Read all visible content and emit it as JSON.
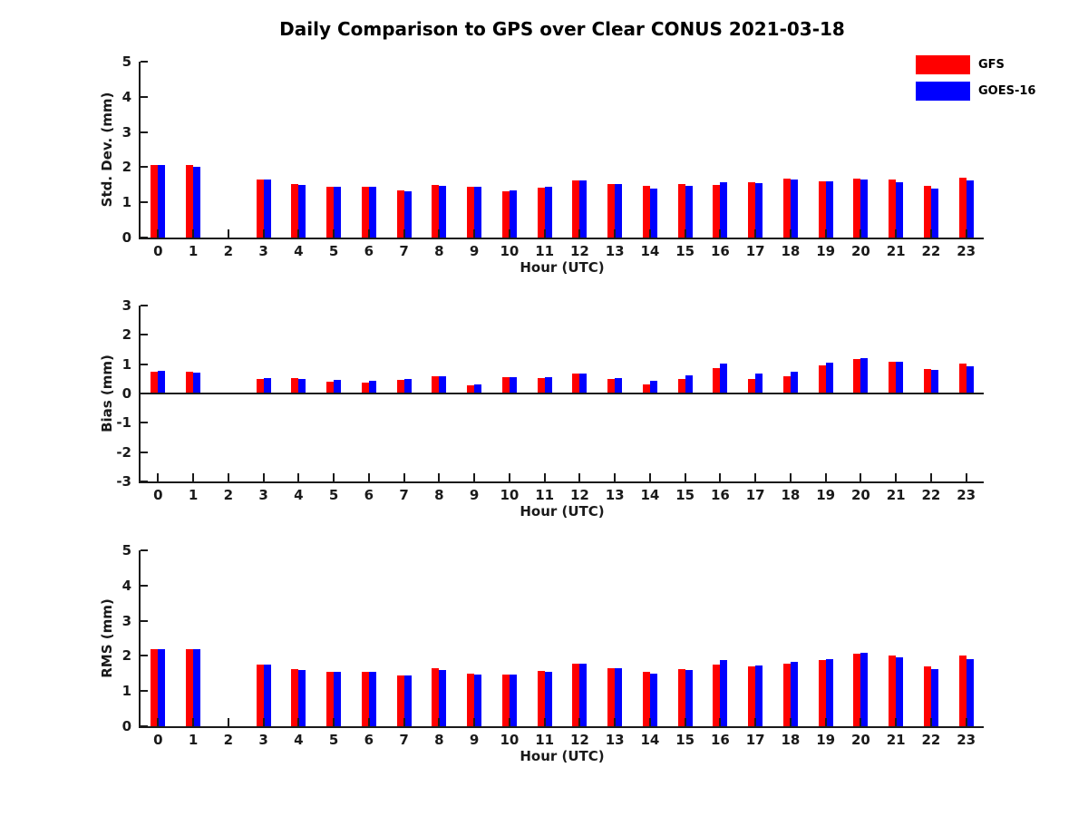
{
  "title": "Daily Comparison to GPS over Clear CONUS 2021-03-18",
  "legend": {
    "items": [
      {
        "label": "GFS",
        "color": "#ff0000"
      },
      {
        "label": "GOES-16",
        "color": "#0000ff"
      }
    ]
  },
  "chart_data": [
    {
      "type": "bar",
      "title": "Daily Comparison to GPS over Clear CONUS 2021-03-18",
      "ylabel": "Std. Dev. (mm)",
      "xlabel": "Hour (UTC)",
      "ylim": [
        0,
        5
      ],
      "yticks": [
        0,
        1,
        2,
        3,
        4,
        5
      ],
      "grid": false,
      "legend_position": "top-right",
      "categories": [
        "0",
        "1",
        "2",
        "3",
        "4",
        "5",
        "6",
        "7",
        "8",
        "9",
        "10",
        "11",
        "12",
        "13",
        "14",
        "15",
        "16",
        "17",
        "18",
        "19",
        "20",
        "21",
        "22",
        "23"
      ],
      "series": [
        {
          "name": "GFS",
          "color": "#ff0000",
          "values": [
            2.05,
            2.05,
            null,
            1.65,
            1.51,
            1.45,
            1.45,
            1.35,
            1.49,
            1.44,
            1.31,
            1.43,
            1.62,
            1.51,
            1.48,
            1.52,
            1.5,
            1.56,
            1.67,
            1.59,
            1.67,
            1.65,
            1.46,
            1.7
          ]
        },
        {
          "name": "GOES-16",
          "color": "#0000ff",
          "values": [
            2.06,
            2.02,
            null,
            1.65,
            1.49,
            1.45,
            1.45,
            1.32,
            1.46,
            1.44,
            1.34,
            1.44,
            1.63,
            1.51,
            1.4,
            1.46,
            1.56,
            1.54,
            1.65,
            1.59,
            1.64,
            1.56,
            1.4,
            1.62
          ]
        }
      ]
    },
    {
      "type": "bar",
      "ylabel": "Bias (mm)",
      "xlabel": "Hour (UTC)",
      "ylim": [
        -3,
        3
      ],
      "yticks": [
        -3,
        -2,
        -1,
        0,
        1,
        2,
        3
      ],
      "grid": false,
      "categories": [
        "0",
        "1",
        "2",
        "3",
        "4",
        "5",
        "6",
        "7",
        "8",
        "9",
        "10",
        "11",
        "12",
        "13",
        "14",
        "15",
        "16",
        "17",
        "18",
        "19",
        "20",
        "21",
        "22",
        "23"
      ],
      "series": [
        {
          "name": "GFS",
          "color": "#ff0000",
          "values": [
            0.73,
            0.75,
            null,
            0.5,
            0.53,
            0.41,
            0.38,
            0.45,
            0.6,
            0.28,
            0.55,
            0.54,
            0.68,
            0.51,
            0.3,
            0.5,
            0.86,
            0.51,
            0.6,
            0.96,
            1.16,
            1.09,
            0.84,
            1.01
          ]
        },
        {
          "name": "GOES-16",
          "color": "#0000ff",
          "values": [
            0.78,
            0.7,
            null,
            0.53,
            0.5,
            0.45,
            0.42,
            0.5,
            0.6,
            0.3,
            0.55,
            0.55,
            0.68,
            0.53,
            0.43,
            0.63,
            1.03,
            0.68,
            0.73,
            1.04,
            1.21,
            1.09,
            0.79,
            0.94
          ]
        }
      ]
    },
    {
      "type": "bar",
      "ylabel": "RMS (mm)",
      "xlabel": "Hour (UTC)",
      "ylim": [
        0,
        5
      ],
      "yticks": [
        0,
        1,
        2,
        3,
        4,
        5
      ],
      "grid": false,
      "categories": [
        "0",
        "1",
        "2",
        "3",
        "4",
        "5",
        "6",
        "7",
        "8",
        "9",
        "10",
        "11",
        "12",
        "13",
        "14",
        "15",
        "16",
        "17",
        "18",
        "19",
        "20",
        "21",
        "22",
        "23"
      ],
      "series": [
        {
          "name": "GFS",
          "color": "#ff0000",
          "values": [
            2.2,
            2.2,
            null,
            1.75,
            1.62,
            1.55,
            1.55,
            1.44,
            1.64,
            1.49,
            1.47,
            1.56,
            1.79,
            1.65,
            1.55,
            1.62,
            1.74,
            1.69,
            1.79,
            1.89,
            2.05,
            2.0,
            1.69,
            2.01
          ]
        },
        {
          "name": "GOES-16",
          "color": "#0000ff",
          "values": [
            2.2,
            2.18,
            null,
            1.75,
            1.59,
            1.55,
            1.55,
            1.44,
            1.61,
            1.48,
            1.47,
            1.54,
            1.77,
            1.65,
            1.5,
            1.6,
            1.87,
            1.72,
            1.83,
            1.92,
            2.08,
            1.96,
            1.63,
            1.91
          ]
        }
      ]
    }
  ]
}
